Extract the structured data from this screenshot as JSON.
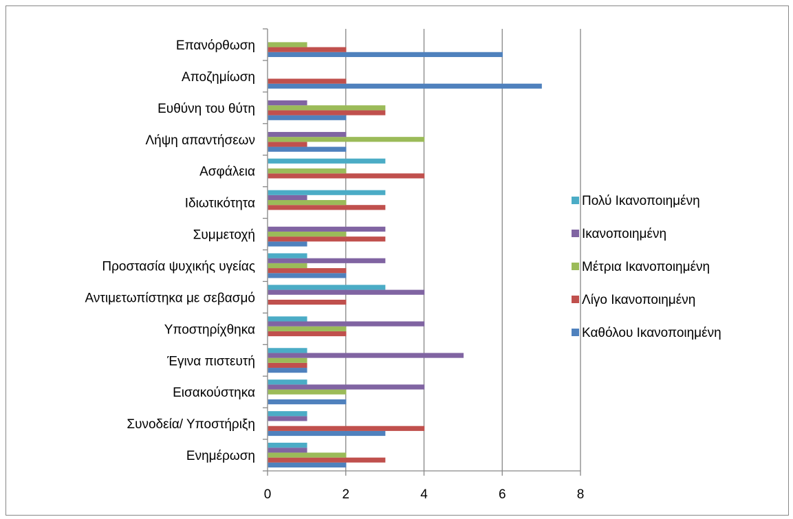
{
  "chart_data": {
    "type": "bar",
    "orientation": "horizontal",
    "categories": [
      "Ενημέρωση",
      "Συνοδεία/ Υποστήριξη",
      "Εισακούστηκα",
      "Έγινα πιστευτή",
      "Υποστηρίχθηκα",
      "Αντιμετωπίστηκα με σεβασμό",
      "Προστασία ψυχικής υγείας",
      "Συμμετοχή",
      "Ιδιωτικότητα",
      "Ασφάλεια",
      "Λήψη απαντήσεων",
      "Ευθύνη του θύτη",
      "Αποζημίωση",
      "Επανόρθωση"
    ],
    "series": [
      {
        "name": "Καθόλου Ικανοποιημένη",
        "color": "#4f81bd",
        "values": [
          2,
          3,
          2,
          1,
          0,
          0,
          2,
          1,
          0,
          0,
          2,
          2,
          7,
          6
        ]
      },
      {
        "name": "Λίγο Ικανοποιημένη",
        "color": "#c0504d",
        "values": [
          3,
          4,
          0,
          1,
          2,
          2,
          2,
          3,
          3,
          4,
          1,
          3,
          2,
          2
        ]
      },
      {
        "name": "Μέτρια Ικανοποιημένη",
        "color": "#9bbb59",
        "values": [
          2,
          0,
          2,
          1,
          2,
          0,
          1,
          2,
          2,
          2,
          4,
          3,
          0,
          1
        ]
      },
      {
        "name": "Ικανοποιημένη",
        "color": "#8064a2",
        "values": [
          1,
          1,
          4,
          5,
          4,
          4,
          3,
          3,
          1,
          0,
          2,
          1,
          0,
          0
        ]
      },
      {
        "name": "Πολύ Ικανοποιημένη",
        "color": "#4bacc6",
        "values": [
          1,
          1,
          1,
          1,
          1,
          3,
          1,
          0,
          3,
          3,
          0,
          0,
          0,
          0
        ]
      }
    ],
    "xlim": [
      0,
      8
    ],
    "xticks": [
      "0",
      "2",
      "4",
      "6",
      "8"
    ],
    "grid": true,
    "legend_position": "right"
  }
}
